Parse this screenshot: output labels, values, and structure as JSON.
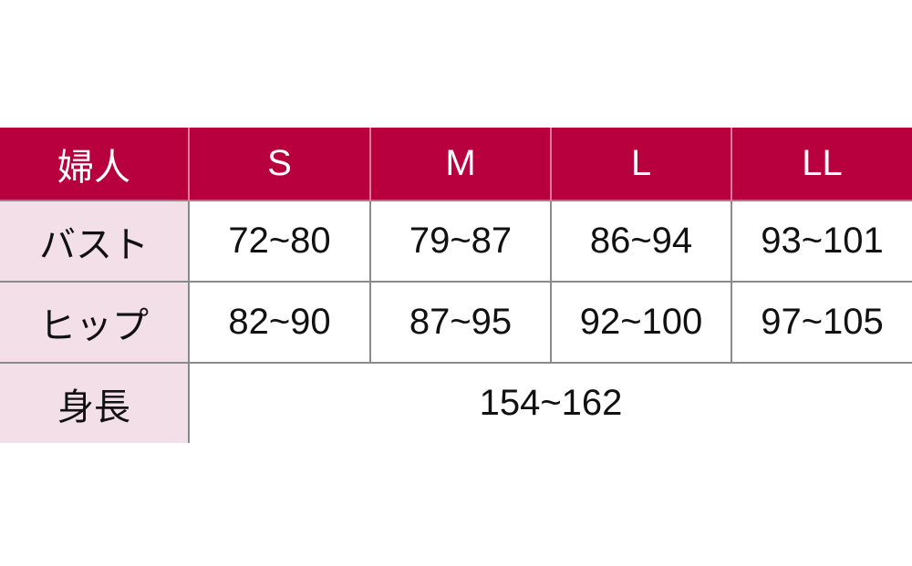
{
  "header": {
    "corner": "婦人",
    "sizes": [
      "S",
      "M",
      "L",
      "LL"
    ]
  },
  "rows": [
    {
      "label": "バスト",
      "values": [
        "72~80",
        "79~87",
        "86~94",
        "93~101"
      ]
    },
    {
      "label": "ヒップ",
      "values": [
        "82~90",
        "87~95",
        "92~100",
        "97~105"
      ]
    },
    {
      "label": "身長",
      "span_value": "154~162"
    }
  ],
  "colors": {
    "header_bg": "#b9003f",
    "label_bg": "#f3dfe7",
    "border": "#8a8a8a"
  }
}
